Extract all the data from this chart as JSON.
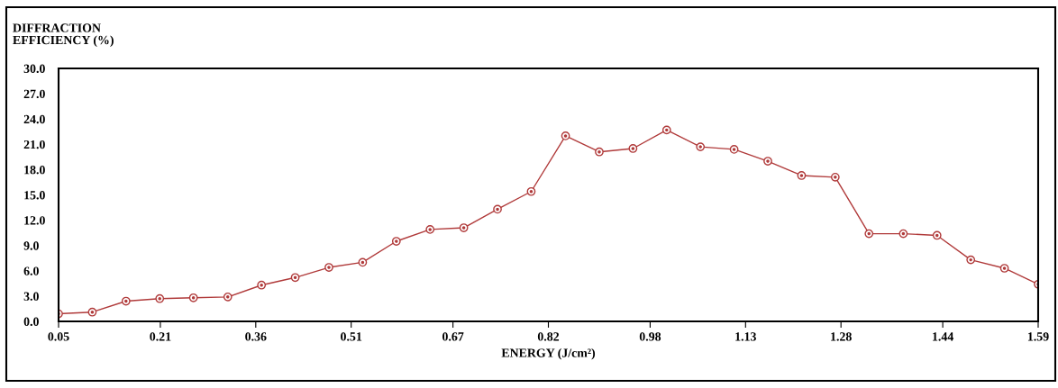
{
  "chart_data": {
    "type": "line",
    "ylabel": "DIFFRACTION\nEFFICIENCY (%)",
    "xlabel": "ENERGY (J/cm²)",
    "x": [
      0.05,
      0.103,
      0.156,
      0.209,
      0.262,
      0.316,
      0.369,
      0.422,
      0.475,
      0.528,
      0.581,
      0.634,
      0.687,
      0.74,
      0.793,
      0.847,
      0.9,
      0.953,
      1.006,
      1.059,
      1.112,
      1.165,
      1.218,
      1.271,
      1.324,
      1.378,
      1.431,
      1.484,
      1.537,
      1.59
    ],
    "series": [
      {
        "color": "#b03a3a",
        "values": [
          0.9,
          1.1,
          2.4,
          2.7,
          2.8,
          2.9,
          4.3,
          5.2,
          6.4,
          7.0,
          9.5,
          10.9,
          11.1,
          13.3,
          15.4,
          22.0,
          20.1,
          20.5,
          22.7,
          20.7,
          20.4,
          19.0,
          17.3,
          17.1,
          10.4,
          10.4,
          10.2,
          7.3,
          6.3,
          4.4
        ]
      }
    ],
    "xlim": [
      0.05,
      1.59
    ],
    "ylim": [
      0,
      30
    ],
    "xticks": [
      0.05,
      0.21,
      0.36,
      0.51,
      0.67,
      0.82,
      0.98,
      1.13,
      1.28,
      1.44,
      1.59
    ],
    "yticks": [
      {
        "value": 0,
        "label": "0.0"
      },
      {
        "value": 3,
        "label": "3.0"
      },
      {
        "value": 6,
        "label": "6.0"
      },
      {
        "value": 9,
        "label": "9.0"
      },
      {
        "value": 12,
        "label": "12.0"
      },
      {
        "value": 15,
        "label": "15.0"
      },
      {
        "value": 18,
        "label": "18.0"
      },
      {
        "value": 21,
        "label": "21.0"
      },
      {
        "value": 24,
        "label": "24.0"
      },
      {
        "value": 27,
        "label": "27.0"
      },
      {
        "value": 30,
        "label": "30.0"
      }
    ],
    "marker": "circle",
    "line_style": "solid",
    "grid": false,
    "legend": false
  }
}
